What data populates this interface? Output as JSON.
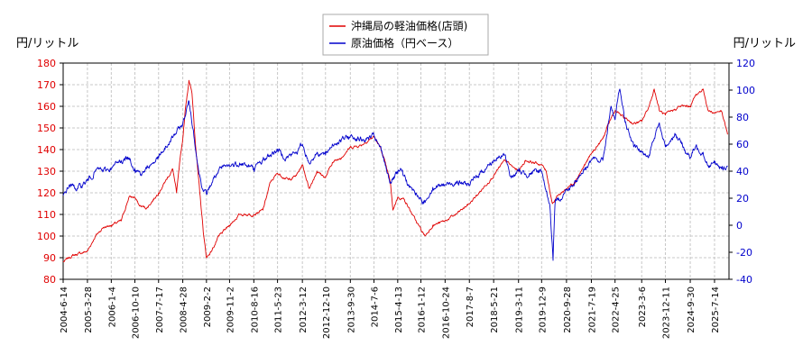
{
  "chart_data": {
    "type": "line",
    "left_axis_unit": "円/リットル",
    "right_axis_unit": "円/リットル",
    "ylim_left": [
      80,
      180
    ],
    "ylim_right": [
      -40,
      120
    ],
    "yticks_left": [
      "80",
      "90",
      "100",
      "110",
      "120",
      "130",
      "140",
      "150",
      "160",
      "170",
      "180"
    ],
    "yticks_right": [
      "-40",
      "-20",
      "0",
      "20",
      "40",
      "60",
      "80",
      "100",
      "120"
    ],
    "x_range": [
      "2004-06-14",
      "2026-01-01"
    ],
    "xticks": [
      "2004-6-14",
      "2005-3-28",
      "2006-1-4",
      "2006-10-10",
      "2007-7-17",
      "2008-4-28",
      "2009-2-2",
      "2009-11-2",
      "2010-8-16",
      "2011-5-23",
      "2012-3-12",
      "2012-12-10",
      "2013-9-30",
      "2014-7-6",
      "2015-4-13",
      "2016-1-12",
      "2016-10-24",
      "2017-8-7",
      "2018-5-21",
      "2019-3-11",
      "2019-12-9",
      "2020-9-28",
      "2021-7-19",
      "2022-4-25",
      "2023-3-6",
      "2023-12-11",
      "2024-9-30",
      "2025-7-14"
    ],
    "grid": true,
    "legend_placement": "top-center",
    "series": [
      {
        "name": "沖縄局の軽油価格(店頭)",
        "axis": "left",
        "color": "#e00000",
        "points": [
          [
            "2004-06-14",
            88
          ],
          [
            "2004-10-01",
            91
          ],
          [
            "2005-01-01",
            92
          ],
          [
            "2005-03-28",
            93
          ],
          [
            "2005-07-01",
            100
          ],
          [
            "2005-10-01",
            104
          ],
          [
            "2006-01-04",
            105
          ],
          [
            "2006-05-01",
            107
          ],
          [
            "2006-08-01",
            118
          ],
          [
            "2006-10-10",
            118
          ],
          [
            "2006-12-01",
            114
          ],
          [
            "2007-03-01",
            113
          ],
          [
            "2007-07-17",
            120
          ],
          [
            "2007-10-01",
            125
          ],
          [
            "2008-01-01",
            131
          ],
          [
            "2008-02-15",
            120
          ],
          [
            "2008-03-15",
            131
          ],
          [
            "2008-04-28",
            145
          ],
          [
            "2008-06-01",
            160
          ],
          [
            "2008-07-10",
            172
          ],
          [
            "2008-08-15",
            166
          ],
          [
            "2008-10-01",
            140
          ],
          [
            "2008-11-15",
            120
          ],
          [
            "2009-01-01",
            100
          ],
          [
            "2009-02-02",
            90
          ],
          [
            "2009-04-01",
            93
          ],
          [
            "2009-07-01",
            100
          ],
          [
            "2009-11-02",
            105
          ],
          [
            "2010-03-01",
            110
          ],
          [
            "2010-08-16",
            110
          ],
          [
            "2010-12-01",
            112
          ],
          [
            "2011-03-01",
            125
          ],
          [
            "2011-05-23",
            129
          ],
          [
            "2011-10-01",
            126
          ],
          [
            "2012-01-01",
            128
          ],
          [
            "2012-03-12",
            133
          ],
          [
            "2012-06-01",
            122
          ],
          [
            "2012-09-01",
            130
          ],
          [
            "2012-12-10",
            127
          ],
          [
            "2013-03-01",
            134
          ],
          [
            "2013-06-01",
            136
          ],
          [
            "2013-09-30",
            141
          ],
          [
            "2014-02-01",
            142
          ],
          [
            "2014-07-06",
            146
          ],
          [
            "2014-10-01",
            140
          ],
          [
            "2015-01-15",
            125
          ],
          [
            "2015-02-15",
            112
          ],
          [
            "2015-04-13",
            118
          ],
          [
            "2015-07-01",
            117
          ],
          [
            "2015-10-01",
            110
          ],
          [
            "2016-01-12",
            103
          ],
          [
            "2016-03-01",
            100
          ],
          [
            "2016-06-01",
            105
          ],
          [
            "2016-10-24",
            107
          ],
          [
            "2017-03-01",
            110
          ],
          [
            "2017-08-07",
            115
          ],
          [
            "2017-12-01",
            120
          ],
          [
            "2018-05-21",
            128
          ],
          [
            "2018-10-01",
            135
          ],
          [
            "2019-01-01",
            132
          ],
          [
            "2019-03-11",
            130
          ],
          [
            "2019-06-01",
            135
          ],
          [
            "2019-12-09",
            133
          ],
          [
            "2020-02-01",
            130
          ],
          [
            "2020-04-15",
            115
          ],
          [
            "2020-06-01",
            118
          ],
          [
            "2020-09-28",
            122
          ],
          [
            "2021-01-01",
            125
          ],
          [
            "2021-07-19",
            138
          ],
          [
            "2021-12-01",
            145
          ],
          [
            "2022-03-15",
            155
          ],
          [
            "2022-04-25",
            158
          ],
          [
            "2022-08-01",
            155
          ],
          [
            "2022-12-01",
            152
          ],
          [
            "2023-03-06",
            153
          ],
          [
            "2023-06-01",
            160
          ],
          [
            "2023-08-01",
            168
          ],
          [
            "2023-10-01",
            158
          ],
          [
            "2023-12-11",
            156
          ],
          [
            "2024-03-01",
            158
          ],
          [
            "2024-06-01",
            160
          ],
          [
            "2024-09-30",
            160
          ],
          [
            "2024-12-01",
            165
          ],
          [
            "2025-03-01",
            168
          ],
          [
            "2025-05-01",
            158
          ],
          [
            "2025-07-14",
            157
          ],
          [
            "2025-10-01",
            158
          ],
          [
            "2025-12-15",
            147
          ]
        ]
      },
      {
        "name": "原油価格（円ベース）",
        "axis": "right",
        "color": "#0000cc",
        "points": [
          [
            "2004-06-14",
            22
          ],
          [
            "2004-09-01",
            30
          ],
          [
            "2004-12-01",
            27
          ],
          [
            "2005-03-28",
            33
          ],
          [
            "2005-08-01",
            42
          ],
          [
            "2005-10-01",
            40
          ],
          [
            "2006-01-04",
            42
          ],
          [
            "2006-05-01",
            48
          ],
          [
            "2006-08-01",
            50
          ],
          [
            "2006-10-10",
            42
          ],
          [
            "2007-01-01",
            38
          ],
          [
            "2007-04-01",
            44
          ],
          [
            "2007-07-17",
            50
          ],
          [
            "2007-10-01",
            56
          ],
          [
            "2008-01-01",
            65
          ],
          [
            "2008-04-28",
            75
          ],
          [
            "2008-07-10",
            92
          ],
          [
            "2008-09-01",
            70
          ],
          [
            "2008-11-01",
            40
          ],
          [
            "2009-01-01",
            25
          ],
          [
            "2009-02-02",
            23
          ],
          [
            "2009-05-01",
            35
          ],
          [
            "2009-08-01",
            42
          ],
          [
            "2009-11-02",
            44
          ],
          [
            "2010-03-01",
            46
          ],
          [
            "2010-08-16",
            42
          ],
          [
            "2010-12-01",
            48
          ],
          [
            "2011-05-23",
            56
          ],
          [
            "2011-09-01",
            50
          ],
          [
            "2012-01-01",
            54
          ],
          [
            "2012-03-12",
            60
          ],
          [
            "2012-06-01",
            46
          ],
          [
            "2012-09-01",
            54
          ],
          [
            "2012-12-10",
            52
          ],
          [
            "2013-03-01",
            60
          ],
          [
            "2013-09-30",
            66
          ],
          [
            "2014-03-01",
            63
          ],
          [
            "2014-07-06",
            66
          ],
          [
            "2014-10-01",
            55
          ],
          [
            "2015-01-15",
            32
          ],
          [
            "2015-04-13",
            38
          ],
          [
            "2015-06-01",
            40
          ],
          [
            "2015-09-01",
            28
          ],
          [
            "2016-01-12",
            20
          ],
          [
            "2016-02-15",
            16
          ],
          [
            "2016-06-01",
            28
          ],
          [
            "2016-10-24",
            30
          ],
          [
            "2017-03-01",
            32
          ],
          [
            "2017-08-07",
            30
          ],
          [
            "2017-12-01",
            38
          ],
          [
            "2018-05-21",
            48
          ],
          [
            "2018-10-01",
            52
          ],
          [
            "2018-12-15",
            35
          ],
          [
            "2019-03-11",
            40
          ],
          [
            "2019-06-01",
            38
          ],
          [
            "2019-12-09",
            40
          ],
          [
            "2020-03-15",
            15
          ],
          [
            "2020-04-22",
            -26
          ],
          [
            "2020-05-15",
            15
          ],
          [
            "2020-09-28",
            26
          ],
          [
            "2021-01-01",
            32
          ],
          [
            "2021-07-19",
            48
          ],
          [
            "2021-12-01",
            48
          ],
          [
            "2022-03-10",
            88
          ],
          [
            "2022-04-25",
            78
          ],
          [
            "2022-06-15",
            100
          ],
          [
            "2022-09-01",
            75
          ],
          [
            "2022-12-01",
            58
          ],
          [
            "2023-03-06",
            54
          ],
          [
            "2023-06-01",
            52
          ],
          [
            "2023-09-25",
            75
          ],
          [
            "2023-12-11",
            58
          ],
          [
            "2024-04-01",
            68
          ],
          [
            "2024-09-30",
            50
          ],
          [
            "2024-12-01",
            58
          ],
          [
            "2025-03-01",
            54
          ],
          [
            "2025-05-01",
            44
          ],
          [
            "2025-07-14",
            46
          ],
          [
            "2025-10-01",
            42
          ],
          [
            "2025-12-15",
            44
          ]
        ]
      }
    ]
  }
}
